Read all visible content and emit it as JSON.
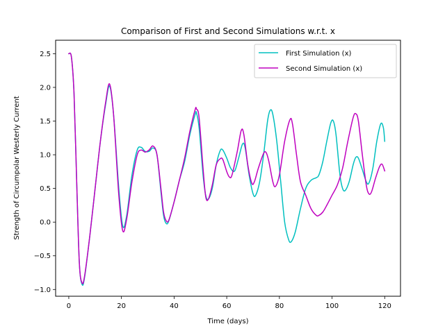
{
  "chart_data": {
    "type": "line",
    "title": "Comparison of First and Second Simulations w.r.t. x",
    "xlabel": "Time (days)",
    "ylabel": "Strength of Circumpolar Westerly Current",
    "xlim": [
      -5,
      126
    ],
    "ylim": [
      -1.1,
      2.7
    ],
    "xticks": [
      0,
      20,
      40,
      60,
      80,
      100,
      120
    ],
    "yticks": [
      -1.0,
      -0.5,
      0.0,
      0.5,
      1.0,
      1.5,
      2.0,
      2.5
    ],
    "xtick_labels": [
      "0",
      "20",
      "40",
      "60",
      "80",
      "100",
      "120"
    ],
    "ytick_labels": [
      "−1.0",
      "−0.5",
      "0.0",
      "0.5",
      "1.0",
      "1.5",
      "2.0",
      "2.5"
    ],
    "legend_position": "upper right",
    "grid": false,
    "series": [
      {
        "name": "First Simulation (x)",
        "color": "#00bfbf",
        "points": [
          [
            0,
            2.5
          ],
          [
            1,
            2.45
          ],
          [
            2,
            1.9
          ],
          [
            3,
            0.6
          ],
          [
            4,
            -0.6
          ],
          [
            5,
            -0.92
          ],
          [
            6,
            -0.82
          ],
          [
            8,
            -0.2
          ],
          [
            10,
            0.5
          ],
          [
            12,
            1.2
          ],
          [
            14,
            1.75
          ],
          [
            15.5,
            2.02
          ],
          [
            17,
            1.6
          ],
          [
            19,
            0.5
          ],
          [
            20.5,
            -0.06
          ],
          [
            22,
            0.1
          ],
          [
            24,
            0.7
          ],
          [
            26,
            1.07
          ],
          [
            27.5,
            1.11
          ],
          [
            29,
            1.05
          ],
          [
            30.5,
            1.05
          ],
          [
            32,
            1.1
          ],
          [
            33.5,
            1.0
          ],
          [
            35,
            0.45
          ],
          [
            36,
            0.1
          ],
          [
            37,
            -0.02
          ],
          [
            38,
            0.02
          ],
          [
            40,
            0.3
          ],
          [
            42,
            0.62
          ],
          [
            44,
            0.9
          ],
          [
            46,
            1.3
          ],
          [
            48,
            1.6
          ],
          [
            48.5,
            1.62
          ],
          [
            49.5,
            1.4
          ],
          [
            51,
            0.7
          ],
          [
            52,
            0.4
          ],
          [
            53,
            0.34
          ],
          [
            54.5,
            0.5
          ],
          [
            56,
            0.85
          ],
          [
            57.5,
            1.06
          ],
          [
            58.5,
            1.07
          ],
          [
            60,
            0.95
          ],
          [
            61.5,
            0.8
          ],
          [
            63,
            0.76
          ],
          [
            64.5,
            0.95
          ],
          [
            66,
            1.16
          ],
          [
            67,
            1.1
          ],
          [
            68.5,
            0.7
          ],
          [
            70,
            0.42
          ],
          [
            71,
            0.4
          ],
          [
            72.5,
            0.6
          ],
          [
            74,
            1.0
          ],
          [
            75.5,
            1.5
          ],
          [
            76.5,
            1.66
          ],
          [
            77.5,
            1.6
          ],
          [
            79,
            1.2
          ],
          [
            80.5,
            0.6
          ],
          [
            82,
            0.0
          ],
          [
            83.5,
            -0.26
          ],
          [
            84.5,
            -0.29
          ],
          [
            86,
            -0.15
          ],
          [
            88,
            0.2
          ],
          [
            90,
            0.5
          ],
          [
            92,
            0.62
          ],
          [
            94,
            0.66
          ],
          [
            95,
            0.7
          ],
          [
            96.5,
            0.9
          ],
          [
            98,
            1.2
          ],
          [
            99.5,
            1.47
          ],
          [
            100.5,
            1.5
          ],
          [
            101.5,
            1.3
          ],
          [
            103,
            0.7
          ],
          [
            104,
            0.5
          ],
          [
            105,
            0.47
          ],
          [
            106.5,
            0.6
          ],
          [
            108,
            0.85
          ],
          [
            109,
            0.96
          ],
          [
            110,
            0.95
          ],
          [
            111.5,
            0.78
          ],
          [
            113,
            0.6
          ],
          [
            114,
            0.58
          ],
          [
            115.5,
            0.8
          ],
          [
            117,
            1.2
          ],
          [
            118.5,
            1.46
          ],
          [
            119.5,
            1.4
          ],
          [
            120,
            1.2
          ]
        ]
      },
      {
        "name": "Second Simulation (x)",
        "color": "#bf00bf",
        "points": [
          [
            0,
            2.5
          ],
          [
            1,
            2.45
          ],
          [
            2,
            1.9
          ],
          [
            3,
            0.6
          ],
          [
            4,
            -0.6
          ],
          [
            5,
            -0.9
          ],
          [
            6,
            -0.8
          ],
          [
            8,
            -0.2
          ],
          [
            10,
            0.5
          ],
          [
            12,
            1.2
          ],
          [
            14,
            1.78
          ],
          [
            15.5,
            2.05
          ],
          [
            17,
            1.6
          ],
          [
            19,
            0.4
          ],
          [
            20.5,
            -0.13
          ],
          [
            22,
            0.05
          ],
          [
            24,
            0.6
          ],
          [
            26,
            1.0
          ],
          [
            27.5,
            1.07
          ],
          [
            29,
            1.04
          ],
          [
            30.5,
            1.07
          ],
          [
            32,
            1.13
          ],
          [
            33.5,
            1.0
          ],
          [
            35,
            0.5
          ],
          [
            36,
            0.15
          ],
          [
            37,
            0.02
          ],
          [
            38,
            0.03
          ],
          [
            40,
            0.3
          ],
          [
            42,
            0.62
          ],
          [
            44,
            0.95
          ],
          [
            46,
            1.35
          ],
          [
            48,
            1.67
          ],
          [
            48.5,
            1.68
          ],
          [
            49.5,
            1.55
          ],
          [
            51,
            0.8
          ],
          [
            52,
            0.38
          ],
          [
            53,
            0.34
          ],
          [
            54.5,
            0.55
          ],
          [
            56,
            0.85
          ],
          [
            57.5,
            0.94
          ],
          [
            58.5,
            0.93
          ],
          [
            60,
            0.75
          ],
          [
            61,
            0.67
          ],
          [
            62,
            0.7
          ],
          [
            64,
            1.05
          ],
          [
            65.5,
            1.36
          ],
          [
            66.5,
            1.3
          ],
          [
            68,
            0.85
          ],
          [
            69.5,
            0.58
          ],
          [
            70.5,
            0.6
          ],
          [
            72,
            0.8
          ],
          [
            74,
            1.02
          ],
          [
            75,
            1.03
          ],
          [
            76,
            0.9
          ],
          [
            77.5,
            0.6
          ],
          [
            78.5,
            0.53
          ],
          [
            80,
            0.7
          ],
          [
            82,
            1.2
          ],
          [
            84,
            1.52
          ],
          [
            85,
            1.45
          ],
          [
            86.5,
            1.0
          ],
          [
            88,
            0.6
          ],
          [
            90,
            0.4
          ],
          [
            92,
            0.2
          ],
          [
            94,
            0.1
          ],
          [
            95,
            0.1
          ],
          [
            96.5,
            0.15
          ],
          [
            98,
            0.25
          ],
          [
            100,
            0.4
          ],
          [
            102,
            0.55
          ],
          [
            104,
            0.8
          ],
          [
            106,
            1.2
          ],
          [
            108,
            1.55
          ],
          [
            109,
            1.61
          ],
          [
            110,
            1.5
          ],
          [
            111.5,
            1.0
          ],
          [
            113,
            0.55
          ],
          [
            114,
            0.42
          ],
          [
            115,
            0.45
          ],
          [
            116.5,
            0.65
          ],
          [
            118,
            0.82
          ],
          [
            119,
            0.86
          ],
          [
            120,
            0.76
          ]
        ]
      }
    ]
  }
}
